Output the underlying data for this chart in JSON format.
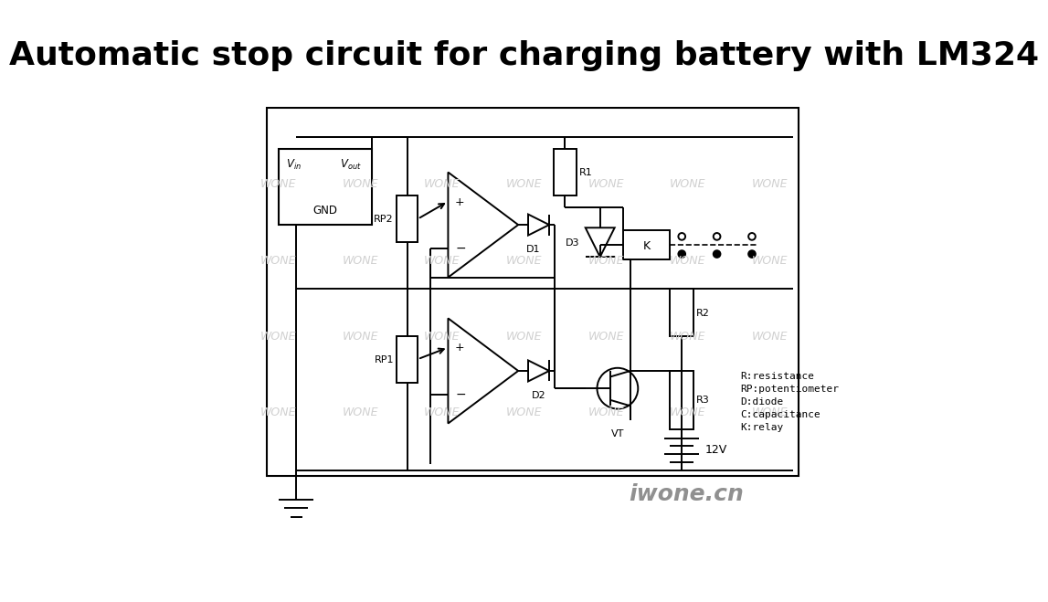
{
  "title": "Automatic stop circuit for charging battery with LM324",
  "title_fontsize": 26,
  "bg_color": "#ffffff",
  "line_color": "#000000",
  "watermark_color": "#d0d0d0",
  "watermark_text": "WONE",
  "legend_text": "R:resistance\nRP:potentiometer\nD:diode\nC:capacitance\nK:relay",
  "battery_label": "12V",
  "iwone_text": "iwone.cn"
}
